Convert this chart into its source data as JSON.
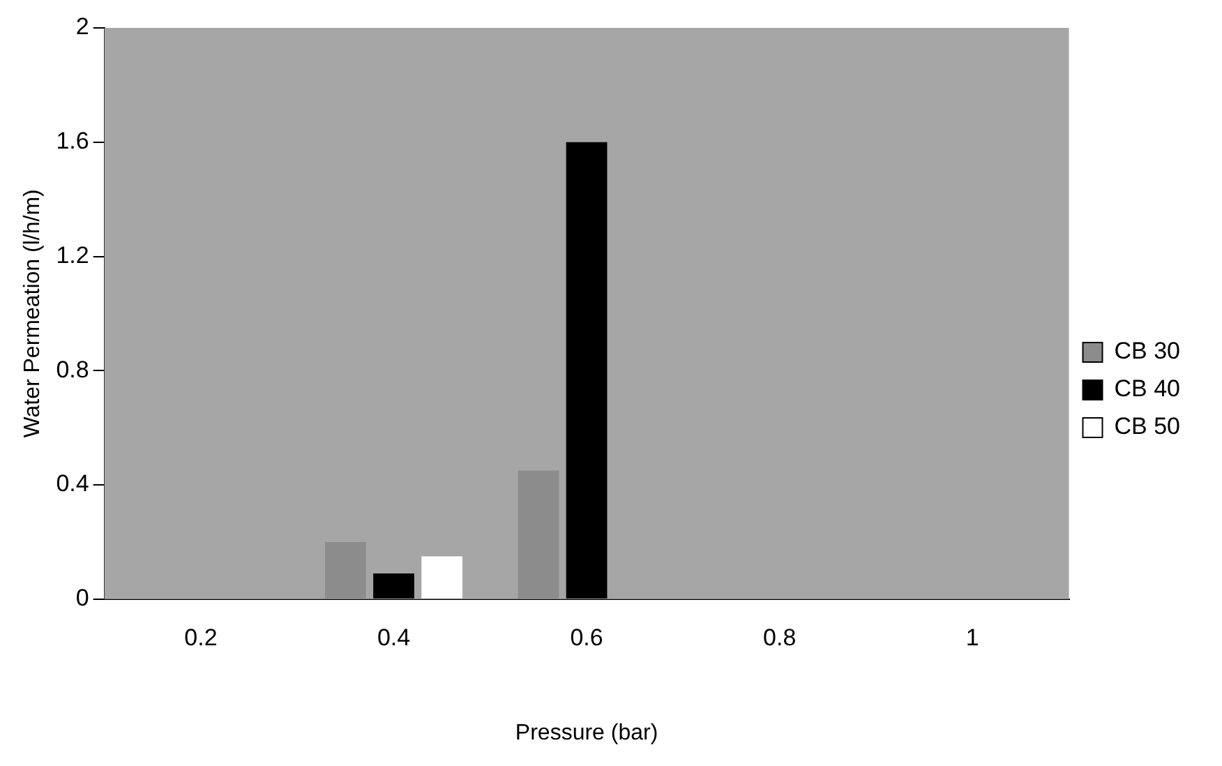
{
  "chart_data": {
    "type": "bar",
    "xlabel": "Pressure (bar)",
    "ylabel": "Water Permeation (l/h/m)",
    "categories": [
      "0.2",
      "0.4",
      "0.6",
      "0.8",
      "1"
    ],
    "series": [
      {
        "name": "CB 30",
        "color": "#8c8c8c",
        "values": [
          null,
          0.2,
          0.45,
          null,
          null
        ]
      },
      {
        "name": "CB 40",
        "color": "#000000",
        "values": [
          null,
          0.09,
          1.6,
          null,
          null
        ]
      },
      {
        "name": "CB 50",
        "color": "#ffffff",
        "values": [
          null,
          0.15,
          null,
          null,
          null
        ]
      }
    ],
    "ylim": [
      0,
      2
    ],
    "yticks": [
      0,
      0.4,
      0.8,
      1.2,
      1.6,
      2
    ],
    "grid": false,
    "legend": "right"
  }
}
